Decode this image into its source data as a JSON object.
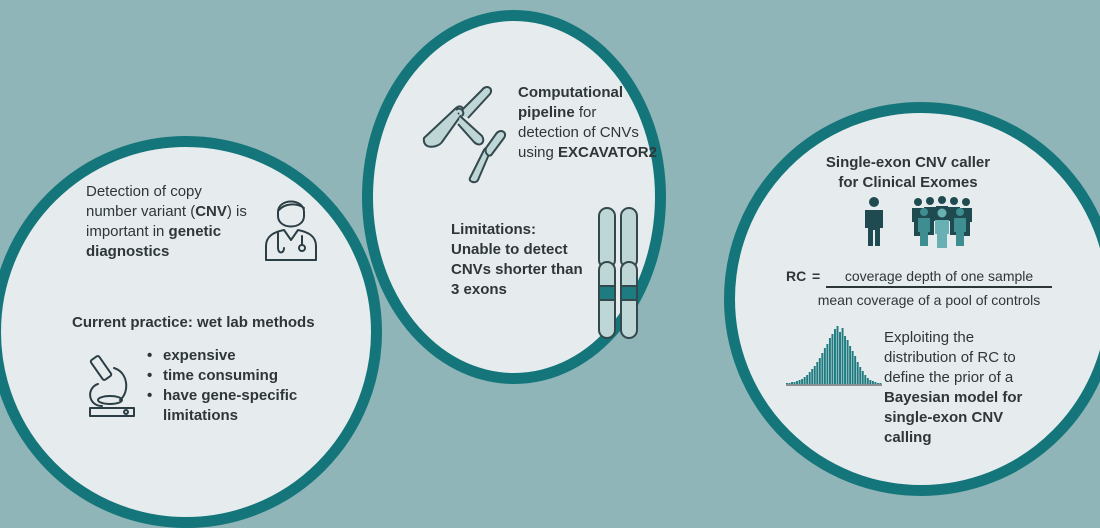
{
  "left": {
    "intro": {
      "line1": "Detection of copy",
      "line2_a": "number variant (",
      "line2_b": "CNV",
      "line2_c": ") is",
      "line3_a": "important in ",
      "line3_b": "genetic",
      "line4": "diagnostics"
    },
    "practice_heading": "Current practice: wet lab methods",
    "bullets": [
      "expensive",
      "time consuming",
      "have gene-specific limitations"
    ]
  },
  "middle": {
    "pipeline": {
      "line1": "Computational",
      "line2_a": "pipeline",
      "line2_b": " for",
      "line3": "detection of CNVs",
      "line4_a": "using ",
      "line4_b": "EXCAVATOR2"
    },
    "limitations": {
      "line1": "Limitations:",
      "line2": "Unable to detect",
      "line3": "CNVs shorter than",
      "line4": "3 exons"
    }
  },
  "right": {
    "title_line1": "Single-exon CNV caller",
    "title_line2": "for Clinical Exomes",
    "formula": {
      "lhs": "RC",
      "equals": "=",
      "numerator": "coverage depth of one sample",
      "denominator": "mean coverage of a pool of controls"
    },
    "exploit": {
      "line1": "Exploiting the",
      "line2": "distribution of RC to",
      "line3": "define the prior of a",
      "line4": "Bayesian model for",
      "line5": "single-exon CNV",
      "line6": "calling"
    },
    "histogram_counts": [
      1,
      1,
      2,
      2,
      3,
      4,
      5,
      7,
      9,
      12,
      15,
      18,
      22,
      26,
      31,
      36,
      40,
      46,
      50,
      55,
      58,
      52,
      56,
      48,
      44,
      38,
      33,
      28,
      22,
      17,
      13,
      9,
      6,
      4,
      3,
      2,
      1,
      1
    ]
  },
  "colors": {
    "background": "#8fb5b8",
    "ring": "#14767a",
    "circle_fill": "#e6ecee",
    "accent": "#1e7b80",
    "chromosome_fill": "#bfd6d7"
  }
}
